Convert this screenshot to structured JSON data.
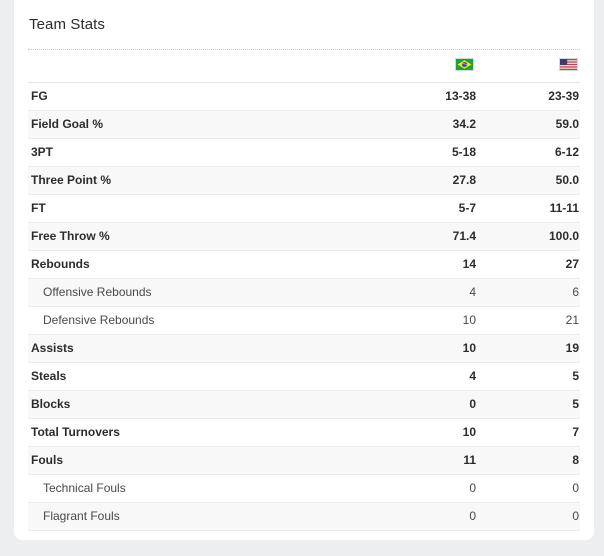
{
  "card": {
    "title": "Team Stats"
  },
  "teams": [
    {
      "flag_icon": "brazil-flag-icon",
      "colors": {
        "green": "#229e45",
        "yellow": "#f8e509",
        "blue": "#2b49a3"
      }
    },
    {
      "flag_icon": "usa-flag-icon",
      "colors": {
        "red": "#b22234",
        "white": "#ffffff",
        "blue": "#3c3b6e"
      }
    }
  ],
  "stats": [
    {
      "label": "FG",
      "team1": "13-38",
      "team2": "23-39"
    },
    {
      "label": "Field Goal %",
      "team1": "34.2",
      "team2": "59.0"
    },
    {
      "label": "3PT",
      "team1": "5-18",
      "team2": "6-12"
    },
    {
      "label": "Three Point %",
      "team1": "27.8",
      "team2": "50.0"
    },
    {
      "label": "FT",
      "team1": "5-7",
      "team2": "11-11"
    },
    {
      "label": "Free Throw %",
      "team1": "71.4",
      "team2": "100.0"
    },
    {
      "label": "Rebounds",
      "team1": "14",
      "team2": "27"
    },
    {
      "label": "Offensive Rebounds",
      "team1": "4",
      "team2": "6"
    },
    {
      "label": "Defensive Rebounds",
      "team1": "10",
      "team2": "21"
    },
    {
      "label": "Assists",
      "team1": "10",
      "team2": "19"
    },
    {
      "label": "Steals",
      "team1": "4",
      "team2": "5"
    },
    {
      "label": "Blocks",
      "team1": "0",
      "team2": "5"
    },
    {
      "label": "Total Turnovers",
      "team1": "10",
      "team2": "7"
    },
    {
      "label": "Fouls",
      "team1": "11",
      "team2": "8"
    },
    {
      "label": "Technical Fouls",
      "team1": "0",
      "team2": "0"
    },
    {
      "label": "Flagrant Fouls",
      "team1": "0",
      "team2": "0"
    }
  ]
}
